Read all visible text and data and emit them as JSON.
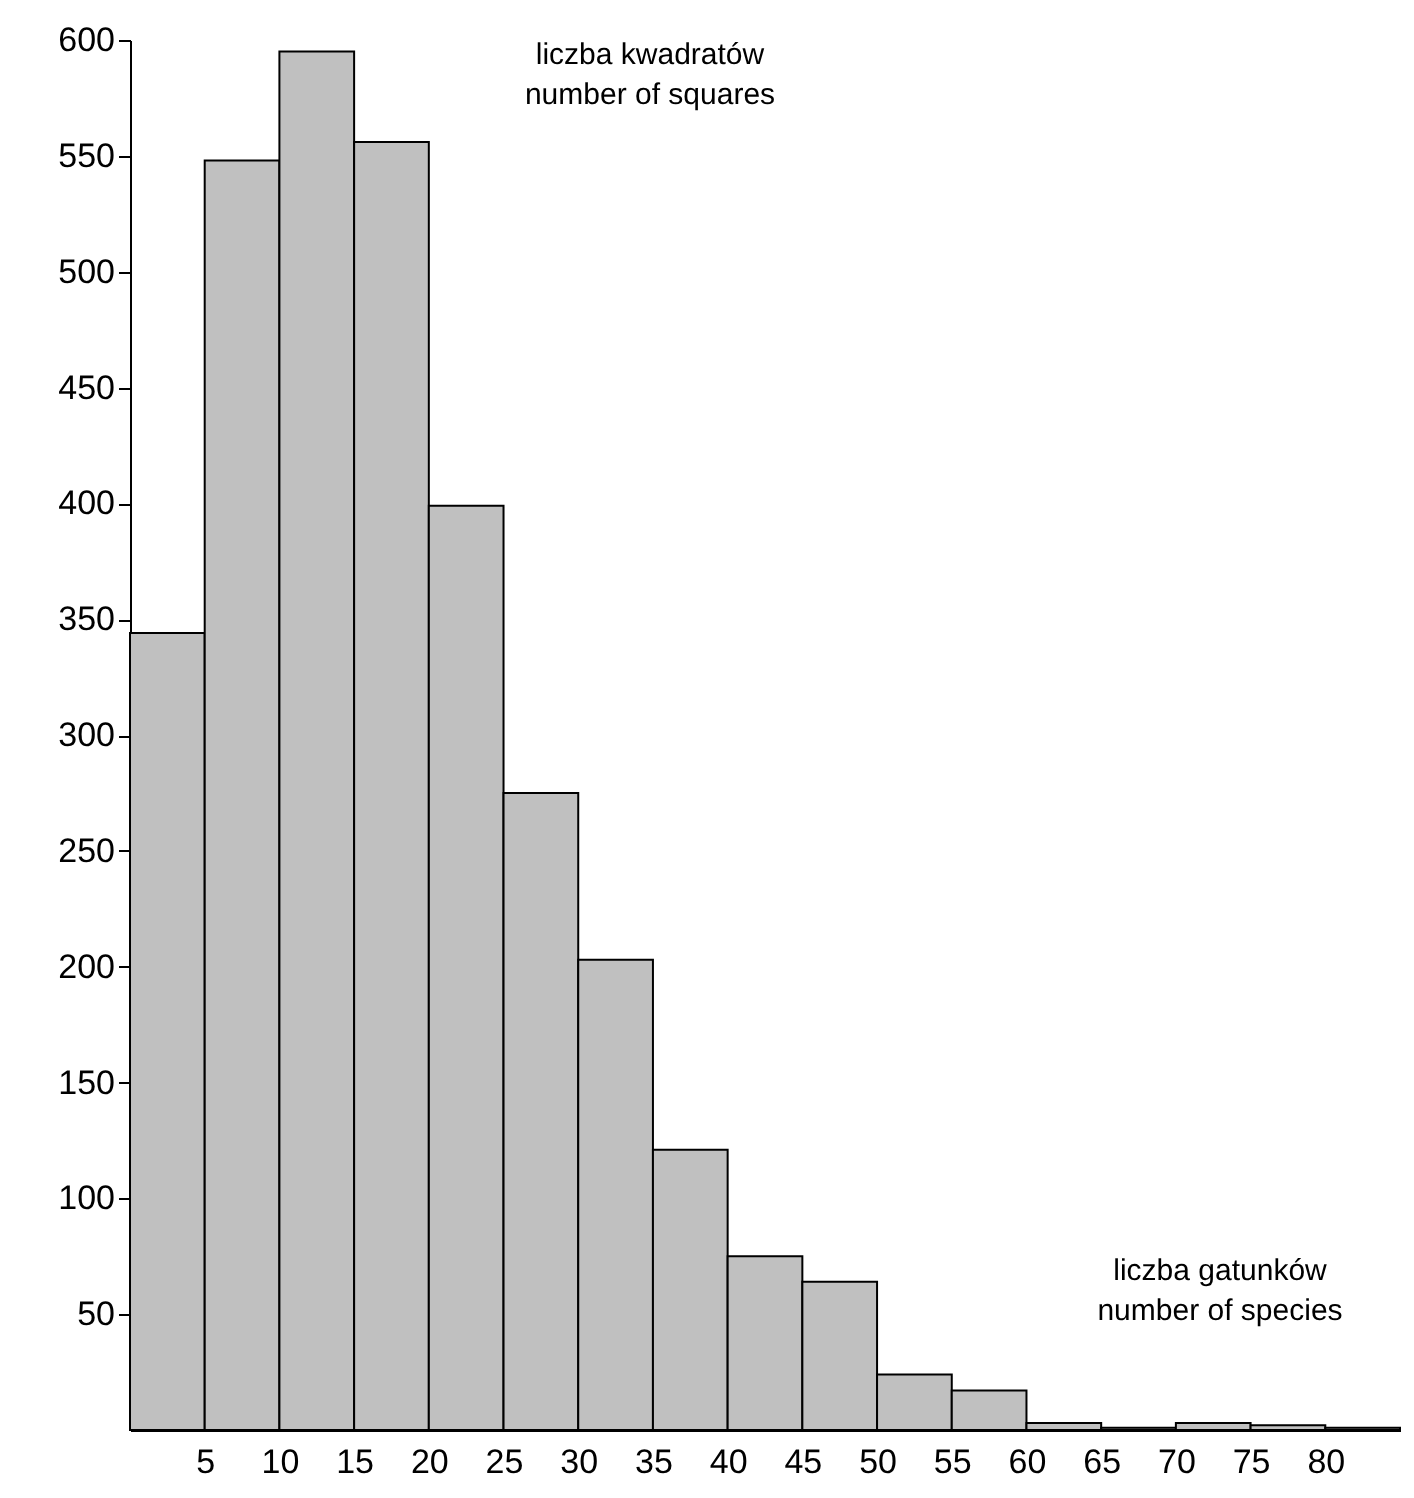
{
  "chart_data": {
    "type": "histogram",
    "xlabel": "liczba gatunków\nnumber of species",
    "ylabel": "liczba kwadratów\nnumber of squares",
    "bins": [
      0,
      5,
      10,
      15,
      20,
      25,
      30,
      35,
      40,
      45,
      50,
      55,
      60,
      65,
      70,
      75,
      80,
      85
    ],
    "values": [
      344,
      548,
      595,
      556,
      399,
      275,
      203,
      121,
      75,
      64,
      24,
      17,
      3,
      1,
      3,
      2,
      1
    ],
    "color": "#c0c0c0",
    "xlim": [
      0,
      85
    ],
    "xticks": [
      5,
      10,
      15,
      20,
      25,
      30,
      35,
      40,
      45,
      50,
      55,
      60,
      65,
      70,
      75,
      80
    ],
    "ylim": [
      0,
      600
    ],
    "yticks": [
      50,
      100,
      150,
      200,
      250,
      300,
      350,
      400,
      450,
      500,
      550,
      600
    ],
    "grid": false
  }
}
